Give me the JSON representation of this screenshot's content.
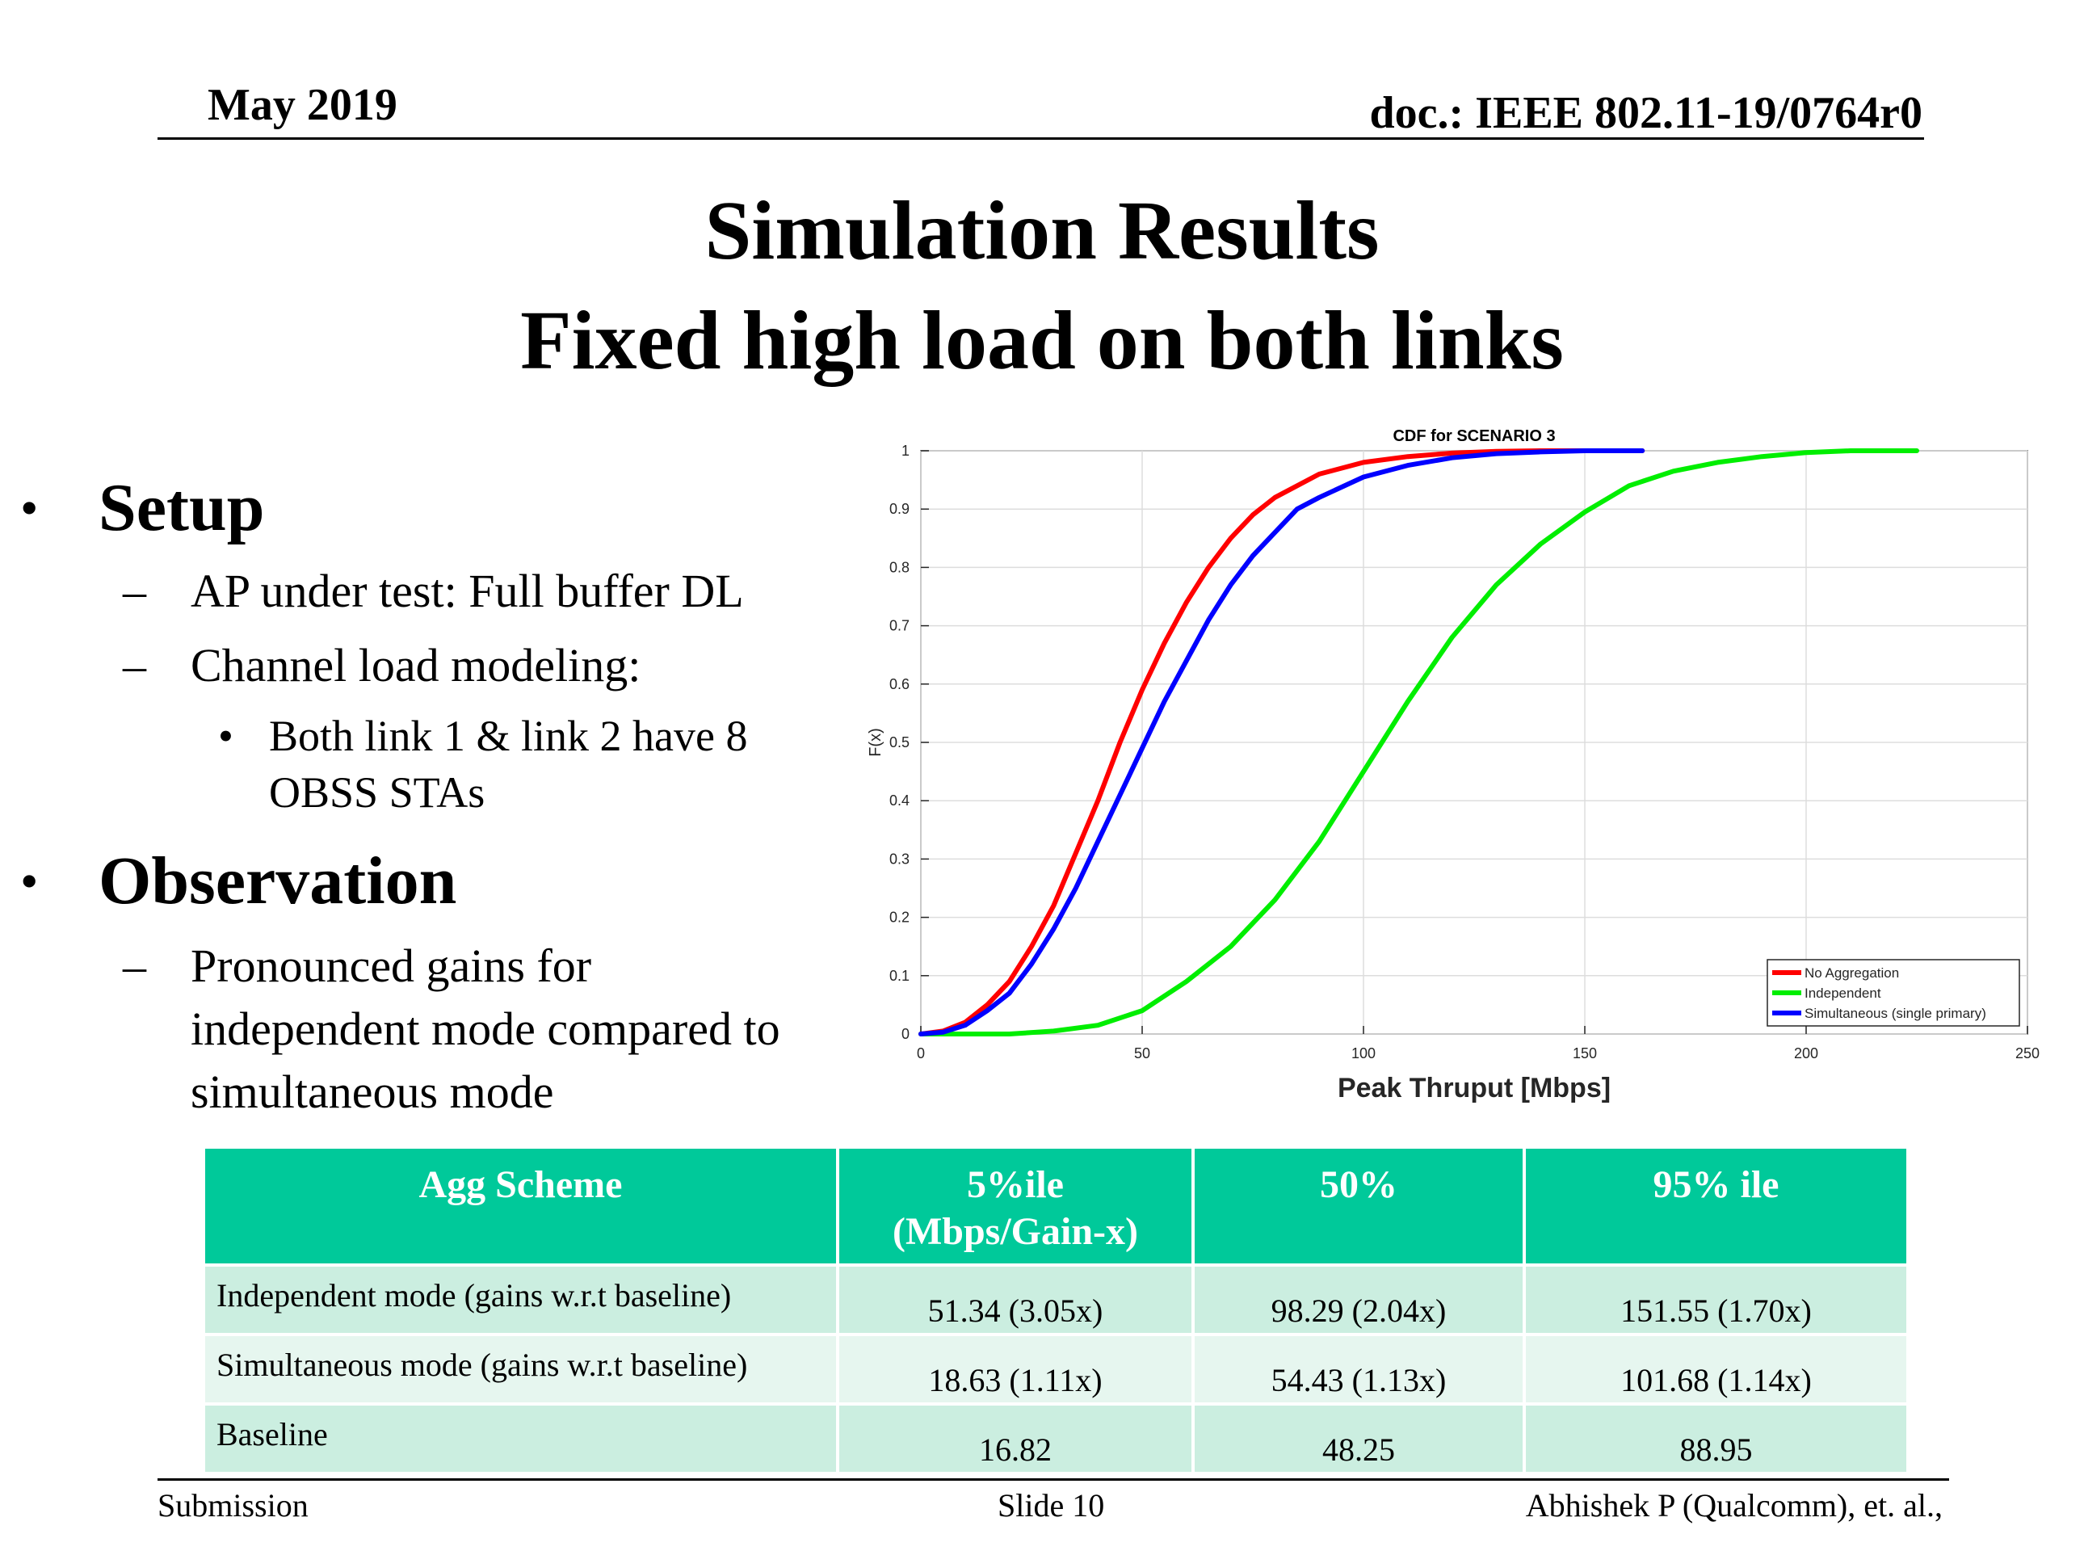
{
  "header": {
    "date": "May 2019",
    "doc": "doc.: IEEE 802.11-19/0764r0"
  },
  "title": {
    "line1": "Simulation Results",
    "line2": "Fixed high load on both links"
  },
  "bullets": {
    "setup": {
      "label": "Setup",
      "items": [
        "AP under test: Full buffer DL",
        "Channel load modeling:"
      ],
      "sub_line1": "Both link 1 & link 2 have 8",
      "sub_line2": "OBSS STAs"
    },
    "observation": {
      "label": "Observation",
      "lines": [
        "Pronounced gains for",
        "independent mode compared to",
        "simultaneous mode"
      ]
    }
  },
  "chart_data": {
    "type": "line",
    "title": "CDF for SCENARIO 3",
    "xlabel": "Peak Thruput [Mbps]",
    "ylabel": "F(x)",
    "xlim": [
      0,
      250
    ],
    "ylim": [
      0,
      1
    ],
    "xticks": [
      0,
      50,
      100,
      150,
      200,
      250
    ],
    "yticks": [
      0,
      0.1,
      0.2,
      0.3,
      0.4,
      0.5,
      0.6,
      0.7,
      0.8,
      0.9,
      1
    ],
    "grid": true,
    "legend_position": "bottom-right",
    "series": [
      {
        "name": "No Aggregation",
        "color": "#ff0000",
        "x": [
          0,
          5,
          10,
          15,
          20,
          25,
          30,
          35,
          40,
          45,
          50,
          55,
          60,
          65,
          70,
          75,
          80,
          90,
          100,
          110,
          120,
          130,
          140,
          150,
          160,
          163
        ],
        "y": [
          0,
          0.005,
          0.02,
          0.05,
          0.09,
          0.15,
          0.22,
          0.31,
          0.4,
          0.5,
          0.59,
          0.67,
          0.74,
          0.8,
          0.85,
          0.89,
          0.92,
          0.96,
          0.98,
          0.99,
          0.996,
          0.999,
          1,
          1,
          1,
          1
        ]
      },
      {
        "name": "Independent",
        "color": "#00ee00",
        "x": [
          0,
          20,
          30,
          40,
          50,
          60,
          70,
          80,
          90,
          100,
          110,
          120,
          130,
          140,
          150,
          160,
          170,
          180,
          190,
          200,
          210,
          225
        ],
        "y": [
          0,
          0,
          0.005,
          0.015,
          0.04,
          0.09,
          0.15,
          0.23,
          0.33,
          0.45,
          0.57,
          0.68,
          0.77,
          0.84,
          0.895,
          0.94,
          0.965,
          0.98,
          0.99,
          0.997,
          1,
          1
        ]
      },
      {
        "name": "Simultaneous (single primary)",
        "color": "#0000ff",
        "x": [
          0,
          5,
          10,
          15,
          20,
          25,
          30,
          35,
          40,
          45,
          50,
          55,
          60,
          65,
          70,
          75,
          80,
          85,
          90,
          100,
          110,
          120,
          130,
          140,
          150,
          163
        ],
        "y": [
          0,
          0.003,
          0.015,
          0.04,
          0.07,
          0.12,
          0.18,
          0.25,
          0.33,
          0.41,
          0.49,
          0.57,
          0.64,
          0.71,
          0.77,
          0.82,
          0.86,
          0.9,
          0.92,
          0.955,
          0.975,
          0.988,
          0.995,
          0.998,
          1,
          1
        ]
      }
    ]
  },
  "table": {
    "headers": [
      [
        "Agg Scheme"
      ],
      [
        "5%ile",
        "(Mbps/Gain-x)"
      ],
      [
        "50%"
      ],
      [
        "95% ile"
      ]
    ],
    "rows": [
      [
        "Independent mode (gains w.r.t baseline)",
        "51.34 (3.05x)",
        "98.29 (2.04x)",
        "151.55 (1.70x)"
      ],
      [
        "Simultaneous mode (gains w.r.t baseline)",
        "18.63 (1.11x)",
        "54.43 (1.13x)",
        "101.68 (1.14x)"
      ],
      [
        "Baseline",
        "16.82",
        "48.25",
        "88.95"
      ]
    ]
  },
  "footer": {
    "left": "Submission",
    "center": "Slide 10",
    "right": "Abhishek P (Qualcomm), et. al.,"
  }
}
